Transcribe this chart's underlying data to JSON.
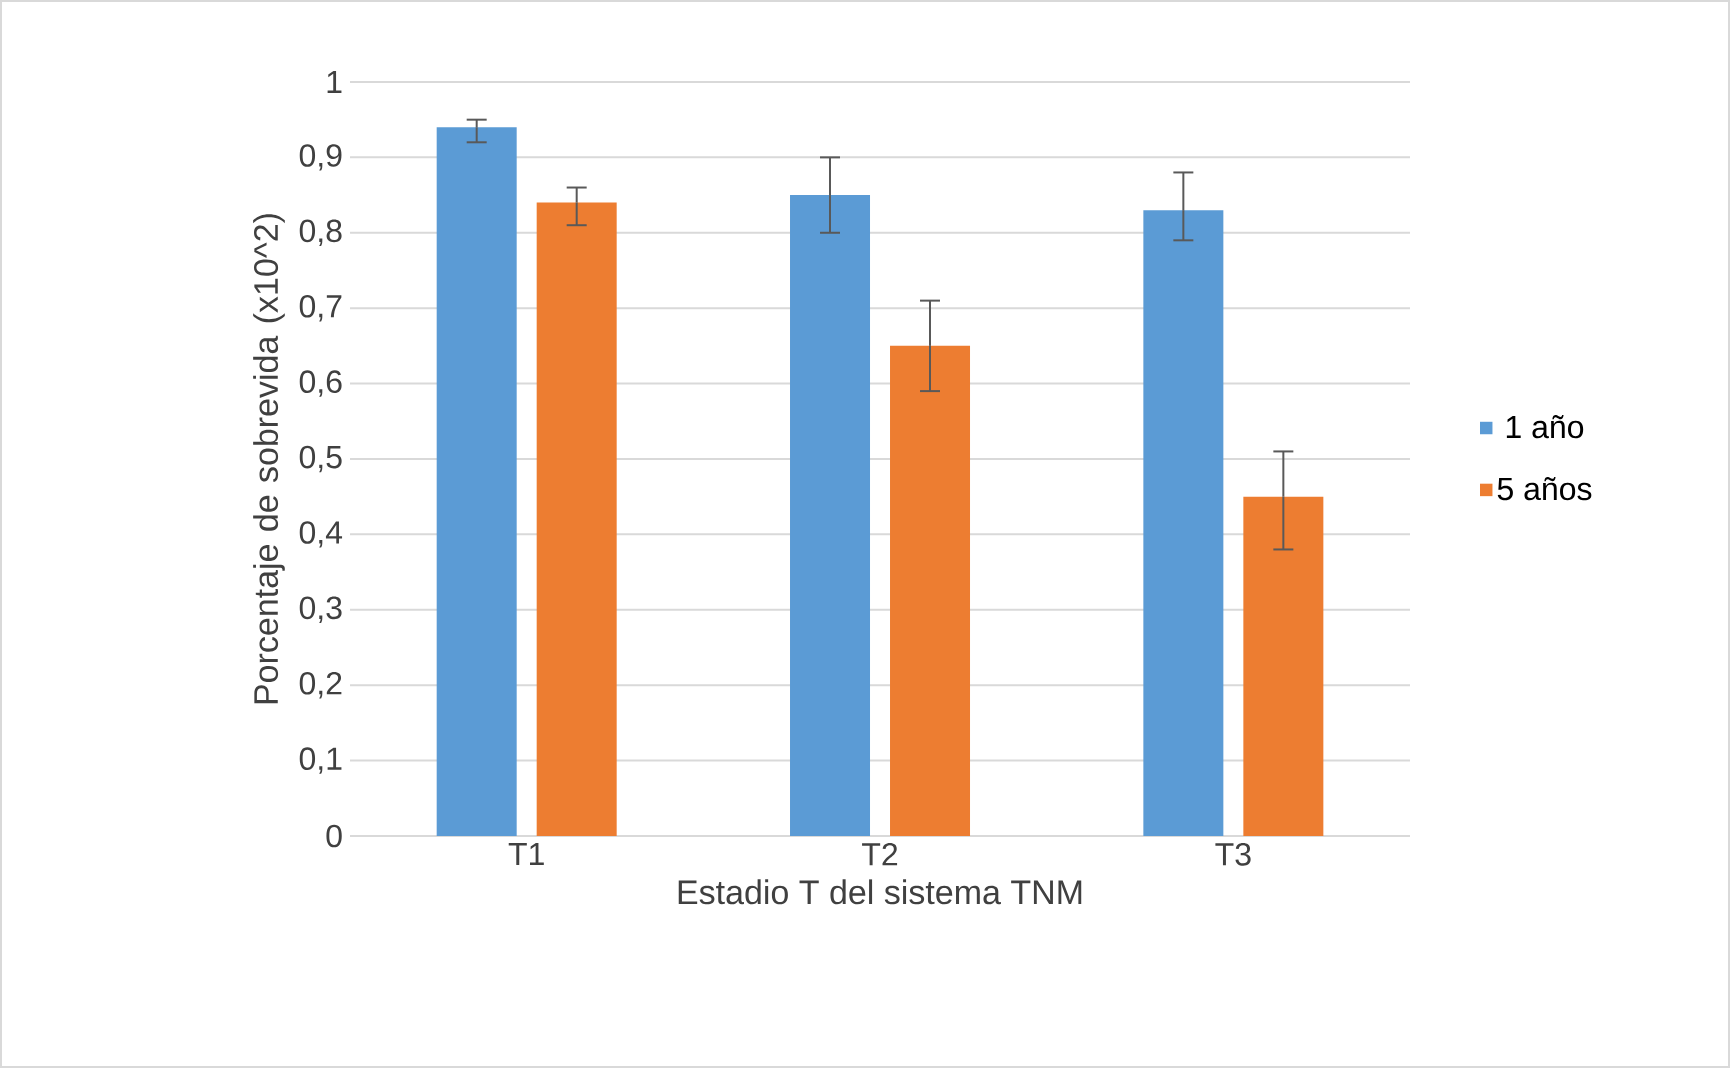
{
  "chart_data": {
    "type": "bar",
    "xlabel": "Estadio T del sistema TNM",
    "ylabel": "Porcentaje de sobrevida (x10^2)",
    "categories": [
      "T1",
      "T2",
      "T3"
    ],
    "series": [
      {
        "name": "1 año",
        "color": "#5b9bd5",
        "values": [
          0.94,
          0.85,
          0.83
        ],
        "errors": [
          [
            0.92,
            0.95
          ],
          [
            0.8,
            0.9
          ],
          [
            0.79,
            0.88
          ]
        ]
      },
      {
        "name": "5 años",
        "color": "#ed7d31",
        "values": [
          0.84,
          0.65,
          0.45
        ],
        "errors": [
          [
            0.81,
            0.86
          ],
          [
            0.59,
            0.71
          ],
          [
            0.38,
            0.51
          ]
        ]
      }
    ],
    "ylim": [
      0,
      1
    ],
    "yticks": [
      0,
      {
        "value": 0.1,
        "label": "0,1"
      },
      {
        "value": 0.2,
        "label": "0,2"
      },
      {
        "value": 0.3,
        "label": "0,3"
      },
      {
        "value": 0.4,
        "label": "0,4"
      },
      {
        "value": 0.5,
        "label": "0,5"
      },
      {
        "value": 0.6,
        "label": "0,6"
      },
      {
        "value": 0.7,
        "label": "0,7"
      },
      {
        "value": 0.8,
        "label": "0,8"
      },
      {
        "value": 0.9,
        "label": "0,9"
      },
      1
    ],
    "grid": "y",
    "legend": "right"
  }
}
